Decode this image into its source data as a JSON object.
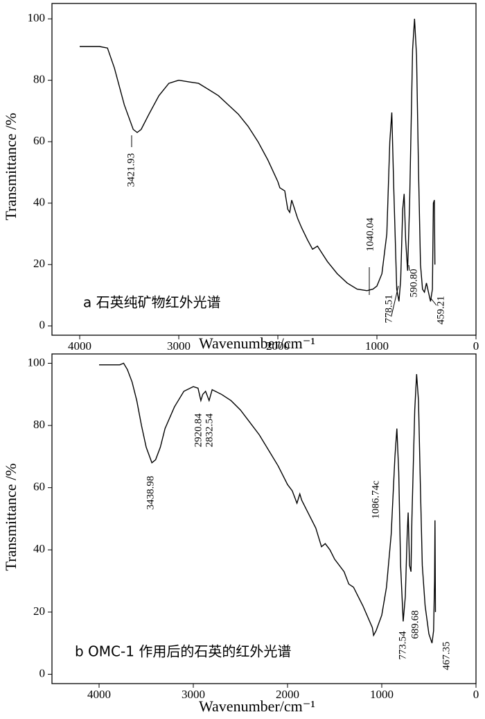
{
  "chart_data": [
    {
      "type": "line",
      "xlabel": "Wavenumber/cm⁻¹",
      "ylabel": "Transmittance /%",
      "caption": "a 石英纯矿物红外光谱",
      "annotations": [
        "3421.93",
        "1040.04",
        "778.51",
        "590.80",
        "459.21"
      ],
      "color": "#000000",
      "xlim": [
        4280,
        0
      ],
      "ylim": [
        -3,
        105
      ],
      "xticks": [
        4000,
        3000,
        2000,
        1000,
        0
      ],
      "yticks": [
        0,
        20,
        40,
        60,
        80,
        100
      ],
      "x": [
        4000,
        3800,
        3720,
        3650,
        3550,
        3460,
        3420,
        3380,
        3300,
        3200,
        3100,
        3000,
        2900,
        2800,
        2700,
        2600,
        2500,
        2400,
        2300,
        2200,
        2100,
        2000,
        1980,
        1930,
        1900,
        1880,
        1860,
        1840,
        1800,
        1760,
        1700,
        1650,
        1600,
        1560,
        1500,
        1400,
        1300,
        1200,
        1100,
        1040,
        1000,
        950,
        900,
        870,
        850,
        830,
        800,
        778,
        760,
        740,
        725,
        710,
        690,
        670,
        640,
        620,
        600,
        580,
        560,
        540,
        520,
        500,
        480,
        459,
        440,
        430,
        420,
        415
      ],
      "values": [
        91,
        91,
        90.5,
        84,
        72,
        64,
        63,
        64,
        69,
        75,
        79,
        80,
        79.5,
        79,
        77,
        75,
        72,
        69,
        65,
        60,
        54,
        47,
        45,
        44,
        38,
        37,
        41,
        39,
        35,
        32,
        28,
        25,
        26,
        24,
        21,
        17,
        14,
        12,
        11.5,
        12,
        13,
        17,
        30,
        60,
        69.5,
        45,
        12,
        8,
        15,
        38,
        43,
        28,
        18,
        40,
        90,
        100,
        88,
        50,
        20,
        12,
        11,
        14,
        11,
        8,
        12,
        40,
        41,
        20
      ]
    },
    {
      "type": "line",
      "xlabel": "Wavenumber/cm⁻¹",
      "ylabel": "Transmittance /%",
      "caption": "b OMC-1 作用后的石英的红外光谱",
      "annotations": [
        "3438.98",
        "2920.84",
        "2832.54",
        "1086.74c",
        "773.54",
        "689.68",
        "467.35"
      ],
      "color": "#000000",
      "xlim": [
        4500,
        0
      ],
      "ylim": [
        -3,
        103
      ],
      "xticks": [
        4000,
        3000,
        2000,
        1000,
        0
      ],
      "yticks": [
        0,
        20,
        40,
        60,
        80,
        100
      ],
      "x": [
        4000,
        3780,
        3740,
        3700,
        3650,
        3600,
        3550,
        3500,
        3440,
        3400,
        3350,
        3300,
        3200,
        3100,
        3000,
        2950,
        2920,
        2900,
        2870,
        2832,
        2800,
        2700,
        2600,
        2500,
        2400,
        2300,
        2200,
        2100,
        2000,
        1950,
        1900,
        1870,
        1850,
        1800,
        1700,
        1640,
        1600,
        1550,
        1500,
        1400,
        1350,
        1300,
        1200,
        1100,
        1087,
        1060,
        1000,
        950,
        900,
        860,
        840,
        820,
        800,
        773,
        750,
        730,
        720,
        705,
        690,
        680,
        650,
        630,
        610,
        590,
        570,
        540,
        500,
        467,
        450,
        440,
        435,
        430
      ],
      "values": [
        99.5,
        99.5,
        100,
        98,
        94,
        88,
        80,
        73,
        68,
        69,
        73,
        79,
        86,
        91,
        92.5,
        92,
        88,
        90,
        91,
        88,
        91.5,
        90,
        88,
        85,
        81,
        77,
        72,
        67,
        61,
        59,
        55,
        58,
        56,
        53,
        47,
        41,
        42,
        40,
        37,
        33,
        29,
        28,
        22,
        15,
        12.5,
        14,
        19,
        28,
        45,
        70,
        79,
        65,
        35,
        17,
        25,
        45,
        52,
        35,
        33,
        50,
        85,
        96.5,
        88,
        60,
        35,
        22,
        13,
        10,
        14,
        30,
        49.5,
        20
      ]
    }
  ]
}
